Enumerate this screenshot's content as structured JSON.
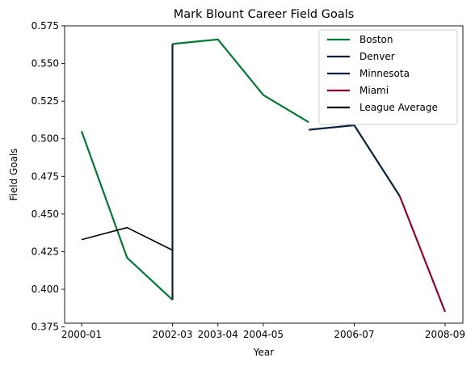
{
  "chart_data": {
    "type": "line",
    "title": "Mark Blount Career Field Goals",
    "xlabel": "Year",
    "ylabel": "Field Goals",
    "x_ticks": [
      "2000-01",
      "2002-03",
      "2003-04",
      "2004-05",
      "2006-07",
      "2008-09"
    ],
    "y_ticks": [
      "0.375",
      "0.400",
      "0.425",
      "0.450",
      "0.475",
      "0.500",
      "0.525",
      "0.550",
      "0.575"
    ],
    "ylim": [
      0.3775,
      0.575
    ],
    "x_categories": [
      "2000-01",
      "2001-02",
      "2002-03",
      "2003-04",
      "2004-05",
      "2005-06",
      "2006-07",
      "2007-08",
      "2008-09"
    ],
    "grid": false,
    "legend_position": "top-right",
    "series": [
      {
        "name": "Boston",
        "color": "#007A33",
        "segments": [
          [
            {
              "x": "2000-01",
              "y": 0.505
            },
            {
              "x": "2001-02",
              "y": 0.421
            },
            {
              "x": "2002-03",
              "y": 0.393
            }
          ],
          [
            {
              "x": "2002-03",
              "y": 0.563
            },
            {
              "x": "2003-04",
              "y": 0.566
            },
            {
              "x": "2004-05",
              "y": 0.529
            },
            {
              "x": "2005-06",
              "y": 0.511
            }
          ]
        ]
      },
      {
        "name": "Denver",
        "color": "#0E2240",
        "segments": [
          [
            {
              "x": "2002-03",
              "y": 0.393
            },
            {
              "x": "2002-03",
              "y": 0.563
            }
          ]
        ]
      },
      {
        "name": "Minnesota",
        "color": "#0C2340",
        "segments": [
          [
            {
              "x": "2005-06",
              "y": 0.506
            },
            {
              "x": "2006-07",
              "y": 0.509
            },
            {
              "x": "2007-08",
              "y": 0.462
            }
          ]
        ]
      },
      {
        "name": "Miami",
        "color": "#98002E",
        "segments": [
          [
            {
              "x": "2007-08",
              "y": 0.462
            },
            {
              "x": "2008-09",
              "y": 0.385
            }
          ]
        ]
      },
      {
        "name": "League Average",
        "color": "#000000",
        "segments": [
          [
            {
              "x": "2000-01",
              "y": 0.433
            },
            {
              "x": "2001-02",
              "y": 0.441
            },
            {
              "x": "2002-03",
              "y": 0.426
            }
          ]
        ]
      }
    ]
  }
}
